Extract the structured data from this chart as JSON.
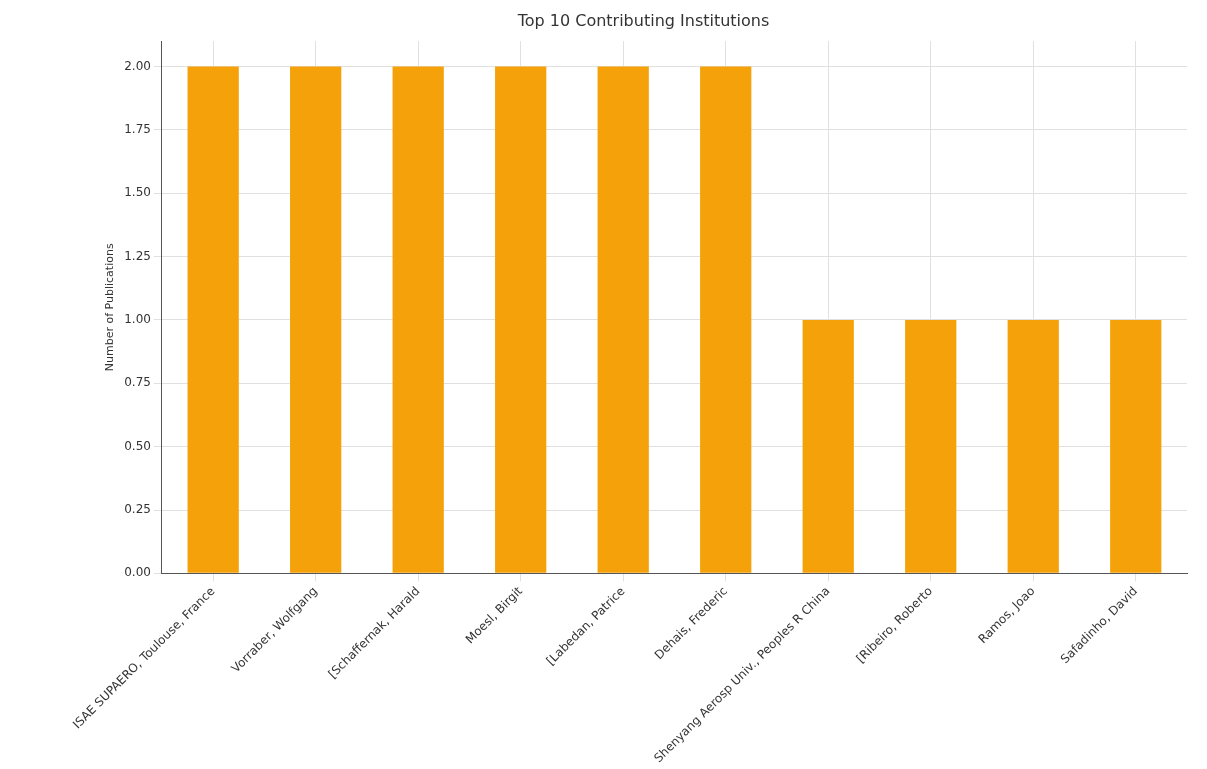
{
  "chart_data": {
    "type": "bar",
    "title": "Top 10 Contributing Institutions",
    "ylabel": "Number of Publications",
    "categories": [
      "ISAE SUPAERO, Toulouse, France",
      "Vorraber, Wolfgang",
      "[Schaffernak, Harald",
      "Moesl, Birgit",
      "[Labedan, Patrice",
      "Dehais, Frederic",
      "Shenyang Aerosp Univ., Peoples R China",
      "[Ribeiro, Roberto",
      "Ramos, Joao",
      "Safadinho, David"
    ],
    "values": [
      2,
      2,
      2,
      2,
      2,
      2,
      1,
      1,
      1,
      1
    ],
    "color": "#f5a10a",
    "ylim": [
      0,
      2.1
    ],
    "yticks": [
      {
        "value": 0,
        "label": "0.00"
      },
      {
        "value": 0.25,
        "label": "0.25"
      },
      {
        "value": 0.5,
        "label": "0.50"
      },
      {
        "value": 0.75,
        "label": "0.75"
      },
      {
        "value": 1,
        "label": "1.00"
      },
      {
        "value": 1.25,
        "label": "1.25"
      },
      {
        "value": 1.5,
        "label": "1.50"
      },
      {
        "value": 1.75,
        "label": "1.75"
      },
      {
        "value": 2,
        "label": "2.00"
      }
    ],
    "grid": true
  }
}
